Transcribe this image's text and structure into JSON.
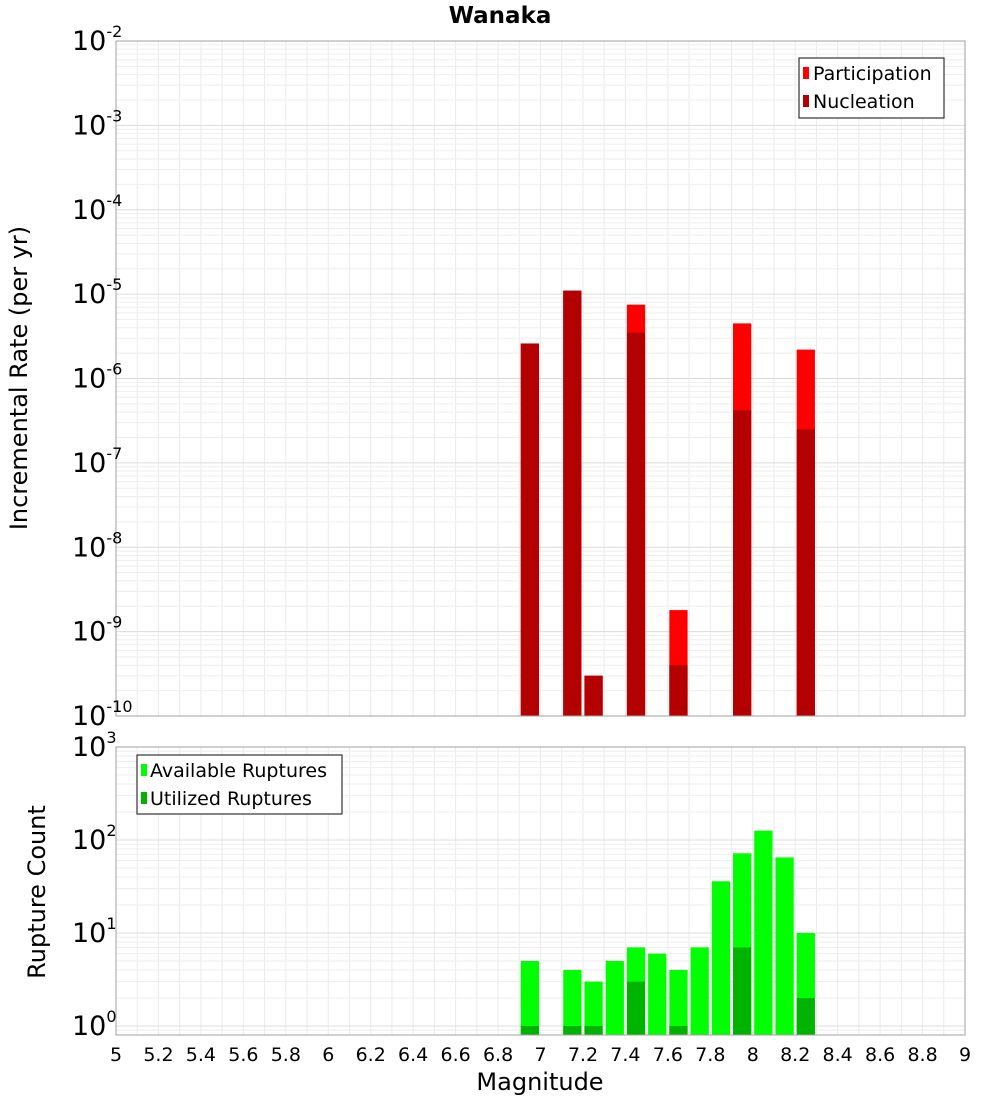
{
  "page": {
    "title": "Wanaka",
    "background": "#ffffff"
  },
  "chart_data": [
    {
      "type": "bar",
      "title": "Wanaka",
      "xlabel": "Magnitude",
      "ylabel": "Incremental Rate (per yr)",
      "yscale": "log",
      "ylim": [
        1e-10,
        0.01
      ],
      "xlim": [
        5,
        9
      ],
      "grid": true,
      "legend_position": "top-right",
      "series": [
        {
          "name": "Participation",
          "color": "#ff0000",
          "x": [
            6.95,
            7.15,
            7.25,
            7.45,
            7.65,
            7.95,
            8.25
          ],
          "values": [
            2.6e-06,
            1.1e-05,
            3e-10,
            7.5e-06,
            1.8e-09,
            4.5e-06,
            2.2e-06
          ]
        },
        {
          "name": "Nucleation",
          "color": "#b30000",
          "x": [
            6.95,
            7.15,
            7.25,
            7.45,
            7.65,
            7.95,
            8.25
          ],
          "values": [
            2.6e-06,
            1.1e-05,
            3e-10,
            3.5e-06,
            4e-10,
            4.2e-07,
            2.5e-07
          ]
        }
      ]
    },
    {
      "type": "bar",
      "xlabel": "Magnitude",
      "ylabel": "Rupture Count",
      "yscale": "log",
      "ylim": [
        0.8,
        1000
      ],
      "xlim": [
        5,
        9
      ],
      "grid": true,
      "legend_position": "top-left",
      "x_ticks": [
        "5",
        "5.2",
        "5.4",
        "5.6",
        "5.8",
        "6",
        "6.2",
        "6.4",
        "6.6",
        "6.8",
        "7",
        "7.2",
        "7.4",
        "7.6",
        "7.8",
        "8",
        "8.2",
        "8.4",
        "8.6",
        "8.8",
        "9"
      ],
      "series": [
        {
          "name": "Available Ruptures",
          "color": "#00ff00",
          "x": [
            6.95,
            7.15,
            7.25,
            7.35,
            7.45,
            7.55,
            7.65,
            7.75,
            7.85,
            7.95,
            8.05,
            8.15,
            8.25
          ],
          "values": [
            5,
            4,
            3,
            5,
            7,
            6,
            4,
            7,
            36,
            72,
            126,
            65,
            10
          ]
        },
        {
          "name": "Utilized Ruptures",
          "color": "#00b300",
          "x": [
            6.95,
            7.15,
            7.25,
            7.35,
            7.45,
            7.55,
            7.65,
            7.75,
            7.85,
            7.95,
            8.05,
            8.15,
            8.25
          ],
          "values": [
            1,
            1,
            1,
            0,
            3,
            0,
            1,
            0,
            0,
            7,
            0,
            0,
            2
          ]
        }
      ]
    }
  ]
}
